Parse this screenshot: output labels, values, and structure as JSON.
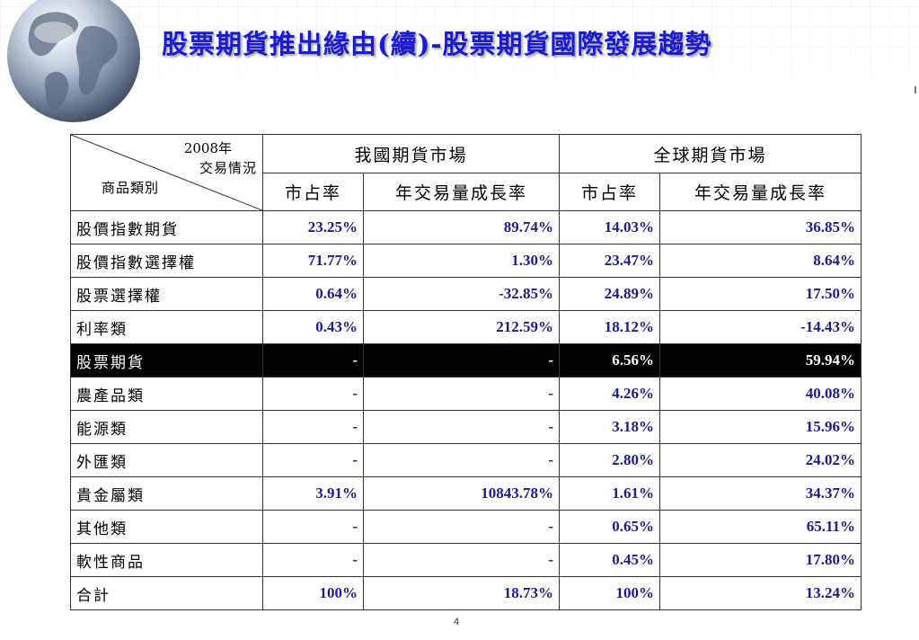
{
  "title": "股票期貨推出緣由(續)-股票期貨國際發展趨勢",
  "table": {
    "corner": {
      "year": "2008年",
      "trade": "交易情況",
      "category": "商品類別"
    },
    "groups": [
      "我國期貨市場",
      "全球期貨市場"
    ],
    "subheaders": [
      "市占率",
      "年交易量成長率",
      "市占率",
      "年交易量成長率"
    ],
    "rows": [
      {
        "name": "股價指數期貨",
        "tw_share": "23.25%",
        "tw_growth": "89.74%",
        "gl_share": "14.03%",
        "gl_growth": "36.85%"
      },
      {
        "name": "股價指數選擇權",
        "tw_share": "71.77%",
        "tw_growth": "1.30%",
        "gl_share": "23.47%",
        "gl_growth": "8.64%"
      },
      {
        "name": "股票選擇權",
        "tw_share": "0.64%",
        "tw_growth": "-32.85%",
        "gl_share": "24.89%",
        "gl_growth": "17.50%"
      },
      {
        "name": "利率類",
        "tw_share": "0.43%",
        "tw_growth": "212.59%",
        "gl_share": "18.12%",
        "gl_growth": "-14.43%"
      },
      {
        "name": "股票期貨",
        "tw_share": "-",
        "tw_growth": "-",
        "gl_share": "6.56%",
        "gl_growth": "59.94%"
      },
      {
        "name": "農產品類",
        "tw_share": "-",
        "tw_growth": "-",
        "gl_share": "4.26%",
        "gl_growth": "40.08%"
      },
      {
        "name": "能源類",
        "tw_share": "-",
        "tw_growth": "-",
        "gl_share": "3.18%",
        "gl_growth": "15.96%"
      },
      {
        "name": "外匯類",
        "tw_share": "-",
        "tw_growth": "-",
        "gl_share": "2.80%",
        "gl_growth": "24.02%"
      },
      {
        "name": "貴金屬類",
        "tw_share": "3.91%",
        "tw_growth": "10843.78%",
        "gl_share": "1.61%",
        "gl_growth": "34.37%"
      },
      {
        "name": "其他類",
        "tw_share": "-",
        "tw_growth": "-",
        "gl_share": "0.65%",
        "gl_growth": "65.11%"
      },
      {
        "name": "軟性商品",
        "tw_share": "-",
        "tw_growth": "-",
        "gl_share": "0.45%",
        "gl_growth": "17.80%"
      },
      {
        "name": "合計",
        "tw_share": "100%",
        "tw_growth": "18.73%",
        "gl_share": "100%",
        "gl_growth": "13.24%"
      }
    ]
  },
  "page_number": "4",
  "colors": {
    "title": "#1b1bd6",
    "numbers": "#1c1c8c",
    "highlight_row_bg": "#000000"
  }
}
